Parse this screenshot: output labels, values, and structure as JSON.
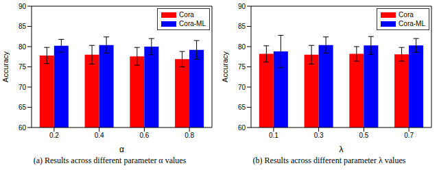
{
  "chart_data": [
    {
      "type": "bar",
      "caption": "(a) Results across different parameter α values",
      "x_label": "α",
      "y_label": "Accuracy",
      "categories": [
        "0.2",
        "0.4",
        "0.6",
        "0.8"
      ],
      "series": [
        {
          "name": "Cora",
          "color": "#ff0000",
          "values": [
            77.8,
            78.0,
            77.6,
            76.9
          ],
          "errors": [
            2.0,
            2.3,
            2.2,
            1.9
          ]
        },
        {
          "name": "Cora-ML",
          "color": "#0000ff",
          "values": [
            80.2,
            80.4,
            80.0,
            79.2
          ],
          "errors": [
            1.6,
            2.0,
            2.0,
            2.3
          ]
        }
      ],
      "ylim": [
        60,
        90
      ],
      "yticks": [
        60,
        65,
        70,
        75,
        80,
        85,
        90
      ],
      "grid": false,
      "legend": "upper right"
    },
    {
      "type": "bar",
      "caption": "(b) Results across different parameter λ values",
      "x_label": "λ",
      "y_label": "Accuracy",
      "categories": [
        "0.1",
        "0.3",
        "0.5",
        "0.7"
      ],
      "series": [
        {
          "name": "Cora",
          "color": "#ff0000",
          "values": [
            78.2,
            78.0,
            78.2,
            78.1
          ],
          "errors": [
            2.0,
            2.3,
            1.8,
            1.7
          ]
        },
        {
          "name": "Cora-ML",
          "color": "#0000ff",
          "values": [
            78.8,
            80.4,
            80.3,
            80.3
          ],
          "errors": [
            4.0,
            2.0,
            2.2,
            1.7
          ]
        }
      ],
      "ylim": [
        60,
        90
      ],
      "yticks": [
        60,
        65,
        70,
        75,
        80,
        85,
        90
      ],
      "grid": false,
      "legend": "upper right"
    }
  ]
}
